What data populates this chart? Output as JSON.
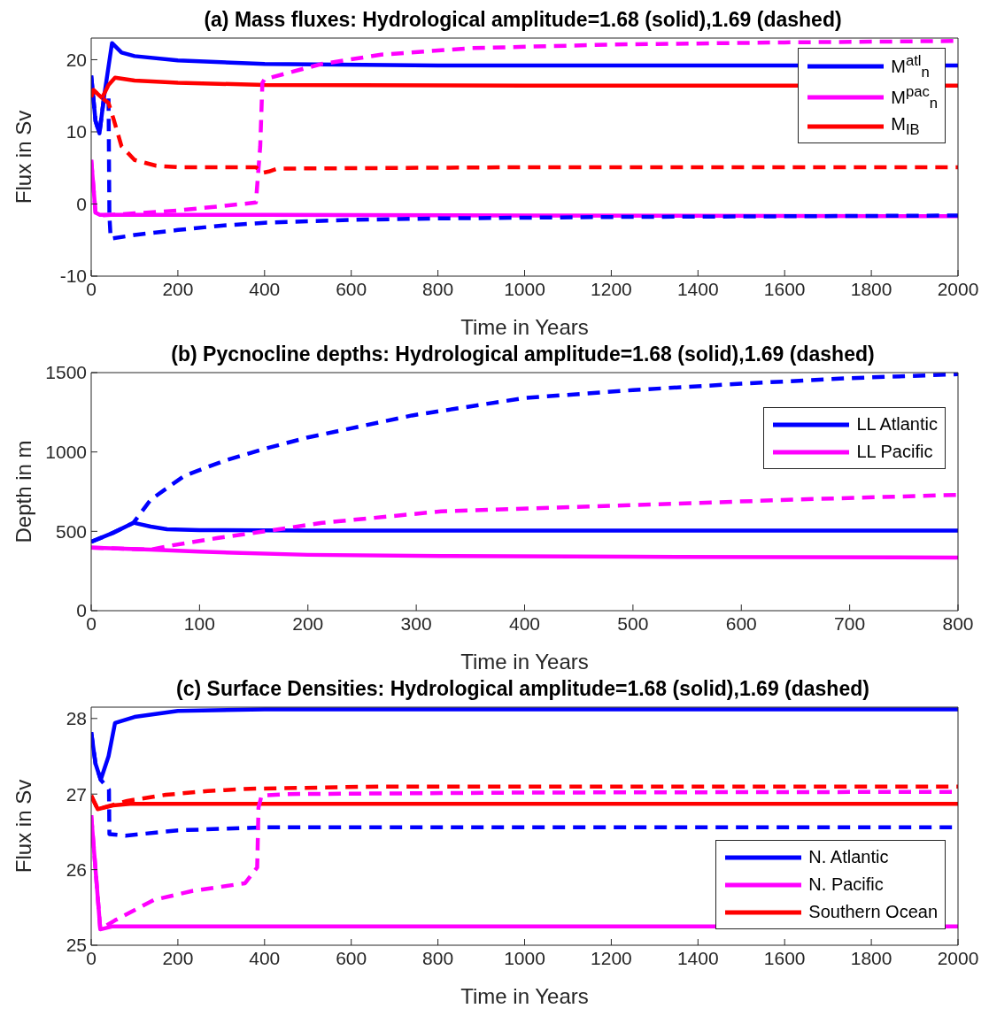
{
  "chart_data": [
    {
      "type": "line",
      "title": "(a) Mass fluxes: Hydrological amplitude=1.68 (solid),1.69 (dashed)",
      "xlabel": "Time in Years",
      "ylabel": "Flux in Sv",
      "xlim": [
        0,
        2000
      ],
      "xticks": [
        0,
        200,
        400,
        600,
        800,
        1000,
        1200,
        1400,
        1600,
        1800,
        2000
      ],
      "ylim": [
        -10,
        23
      ],
      "yticks": [
        -10,
        0,
        10,
        20
      ],
      "legend": "top right",
      "marker": "none",
      "series": [
        {
          "name": "M$^{atl}$$_{n}$",
          "color": "#0000ff",
          "line_style": "solid",
          "x": [
            0,
            10,
            19,
            30,
            48,
            70,
            100,
            200,
            400,
            800,
            2000
          ],
          "values": [
            17.8,
            11.5,
            9.8,
            15,
            22.3,
            21,
            20.5,
            19.9,
            19.4,
            19.2,
            19.2
          ]
        },
        {
          "name": "M$^{pac}$$_{n}$",
          "color": "#ff00ff",
          "line_style": "solid",
          "x": [
            0,
            10,
            20,
            100,
            400,
            1000,
            2000
          ],
          "values": [
            6.1,
            -1.2,
            -1.5,
            -1.5,
            -1.5,
            -1.6,
            -1.7
          ]
        },
        {
          "name": "M$_{IB}$",
          "color": "#ff0000",
          "line_style": "solid",
          "x": [
            0,
            5,
            25,
            40,
            55,
            100,
            200,
            400,
            1000,
            2000
          ],
          "values": [
            14.8,
            15.8,
            14.7,
            16.5,
            17.5,
            17.1,
            16.8,
            16.5,
            16.4,
            16.4
          ]
        },
        {
          "color": "#0000ff",
          "line_style": "dashed",
          "x": [
            0,
            10,
            19,
            30,
            40,
            42,
            45,
            100,
            200,
            300,
            400,
            600,
            800,
            1200,
            2000
          ],
          "values": [
            17.8,
            11.5,
            9.8,
            15,
            14.7,
            -1.6,
            -4.8,
            -4.3,
            -3.6,
            -3,
            -2.6,
            -2.2,
            -2,
            -1.8,
            -1.6
          ]
        },
        {
          "color": "#ff00ff",
          "line_style": "dashed",
          "x": [
            0,
            10,
            20,
            100,
            200,
            300,
            380,
            390,
            395,
            400,
            531,
            669,
            876,
            1200,
            1600,
            2000
          ],
          "values": [
            6.1,
            -1.2,
            -1.6,
            -1.3,
            -0.9,
            -0.3,
            0.2,
            8,
            16.8,
            17.3,
            19.4,
            20.7,
            21.6,
            22.1,
            22.4,
            22.6
          ]
        },
        {
          "color": "#ff0000",
          "line_style": "dashed",
          "x": [
            0,
            5,
            25,
            40,
            52,
            70,
            100,
            150,
            200,
            380,
            395,
            410,
            430,
            1000,
            2000
          ],
          "values": [
            14.8,
            15.8,
            14.7,
            14,
            11.7,
            8,
            6.1,
            5.3,
            5.1,
            5.1,
            4.3,
            4.5,
            4.9,
            5.1,
            5.1
          ]
        }
      ]
    },
    {
      "type": "line",
      "title": "(b) Pycnocline depths: Hydrological amplitude=1.68 (solid),1.69 (dashed)",
      "xlabel": "Time in Years",
      "ylabel": "Depth in m",
      "xlim": [
        0,
        800
      ],
      "xticks": [
        0,
        100,
        200,
        300,
        400,
        500,
        600,
        700,
        800
      ],
      "ylim": [
        0,
        1500
      ],
      "yticks": [
        0,
        500,
        1000,
        1500
      ],
      "legend": "right",
      "marker": "none",
      "series": [
        {
          "name": "LL Atlantic",
          "color": "#0000ff",
          "line_style": "solid",
          "x": [
            0,
            20,
            39,
            55,
            70,
            100,
            200,
            400,
            800
          ],
          "values": [
            434,
            490,
            554,
            530,
            513,
            508,
            505,
            505,
            505
          ]
        },
        {
          "name": "LL Pacific",
          "color": "#ff00ff",
          "line_style": "solid",
          "x": [
            0,
            55,
            100,
            200,
            323,
            500,
            800
          ],
          "values": [
            397,
            385,
            372,
            352,
            344,
            340,
            335
          ]
        },
        {
          "color": "#0000ff",
          "line_style": "dashed",
          "x": [
            0,
            20,
            39,
            55,
            86,
            123,
            160,
            199,
            296,
            400,
            500,
            600,
            700,
            800
          ],
          "values": [
            434,
            490,
            554,
            700,
            850,
            945,
            1020,
            1090,
            1230,
            1340,
            1390,
            1430,
            1465,
            1490
          ]
        },
        {
          "color": "#ff00ff",
          "line_style": "dashed",
          "x": [
            0,
            55,
            75,
            116,
            163,
            213,
            323,
            500,
            650,
            800
          ],
          "values": [
            397,
            385,
            412,
            457,
            503,
            553,
            626,
            665,
            700,
            730
          ]
        }
      ]
    },
    {
      "type": "line",
      "title": "(c) Surface Densities: Hydrological amplitude=1.68 (solid),1.69 (dashed)",
      "xlabel": "Time in Years",
      "ylabel": "Flux in Sv",
      "xlim": [
        0,
        2000
      ],
      "xticks": [
        0,
        200,
        400,
        600,
        800,
        1000,
        1200,
        1400,
        1600,
        1800,
        2000
      ],
      "ylim": [
        25,
        28.15
      ],
      "yticks": [
        25,
        26,
        27,
        28
      ],
      "legend": "bottom right",
      "marker": "none",
      "series": [
        {
          "name": "N. Atlantic",
          "color": "#0000ff",
          "line_style": "solid",
          "x": [
            0,
            10,
            22,
            40,
            55,
            100,
            200,
            400,
            800,
            2000
          ],
          "values": [
            27.82,
            27.4,
            27.19,
            27.5,
            27.94,
            28.02,
            28.1,
            28.12,
            28.12,
            28.12
          ]
        },
        {
          "name": "N. Pacific",
          "color": "#ff00ff",
          "line_style": "solid",
          "x": [
            0,
            21,
            50,
            200,
            2000
          ],
          "values": [
            26.72,
            25.21,
            25.25,
            25.25,
            25.25
          ]
        },
        {
          "name": "Southern Ocean",
          "color": "#ff0000",
          "line_style": "solid",
          "x": [
            0,
            15,
            50,
            90,
            400,
            2000
          ],
          "values": [
            26.98,
            26.8,
            26.85,
            26.87,
            26.87,
            26.87
          ]
        },
        {
          "color": "#0000ff",
          "line_style": "dashed",
          "x": [
            0,
            10,
            22,
            41,
            42,
            79,
            200,
            400,
            1000,
            2000
          ],
          "values": [
            27.82,
            27.4,
            27.19,
            27.06,
            26.47,
            26.45,
            26.52,
            26.56,
            26.56,
            26.56
          ]
        },
        {
          "color": "#ff00ff",
          "line_style": "dashed",
          "x": [
            0,
            21,
            55,
            145,
            235,
            355,
            383,
            386,
            393,
            450,
            1000,
            2000
          ],
          "values": [
            26.72,
            25.21,
            25.33,
            25.6,
            25.72,
            25.82,
            26.03,
            26.82,
            26.98,
            27,
            27.02,
            27.03
          ]
        },
        {
          "color": "#ff0000",
          "line_style": "dashed",
          "x": [
            0,
            15,
            83,
            172,
            269,
            366,
            663,
            2000
          ],
          "values": [
            26.98,
            26.8,
            26.91,
            26.99,
            27.04,
            27.07,
            27.1,
            27.1
          ]
        }
      ]
    }
  ]
}
